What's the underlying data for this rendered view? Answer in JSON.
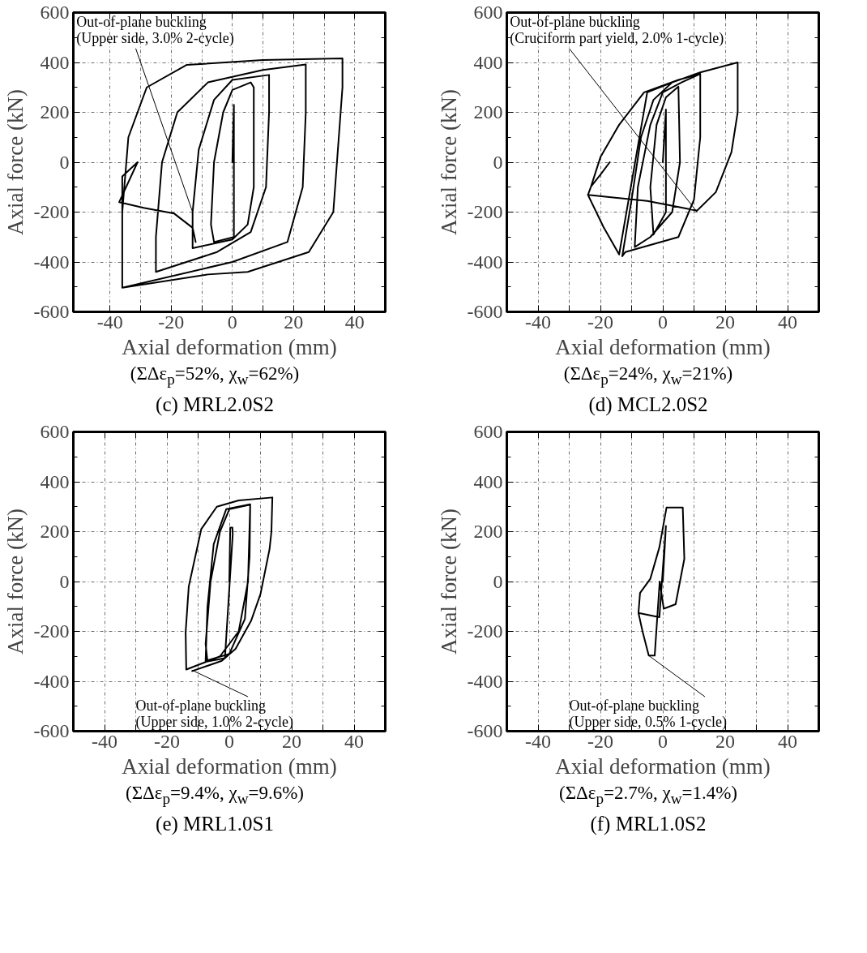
{
  "chart_data": [
    {
      "type": "line",
      "title": "(c) MRL2.0S2",
      "subtitle": "(ΣΔε$_{p}$=52%, χ$_{w}$=62%)",
      "xlabel": "Axial deformation (mm)",
      "ylabel": "Axial force (kN)",
      "xlim": [
        -52,
        50
      ],
      "ylim": [
        -600,
        600
      ],
      "xticks": [
        -40,
        {
          "value": -30,
          "label": null
        },
        -20,
        {
          "value": -10,
          "label": null
        },
        0,
        {
          "value": 10,
          "label": null
        },
        20,
        {
          "value": 30,
          "label": null
        },
        40
      ],
      "yticks": [
        -600,
        -400,
        -200,
        0,
        200,
        400,
        600
      ],
      "grid": true,
      "series": [
        {
          "color": "#000000",
          "x": [
            0,
            0.5,
            0.5,
            -6,
            -7,
            -6,
            -3,
            0,
            6,
            7,
            7,
            5,
            0,
            -13,
            -13,
            -11,
            -6,
            0,
            12,
            12,
            11,
            6,
            -5,
            -25,
            -25,
            -23,
            -18,
            -8,
            10,
            24,
            24,
            23,
            18,
            0,
            -36,
            -36,
            -34,
            -28,
            -15,
            10,
            36,
            36,
            33,
            25,
            5,
            -8,
            -36,
            -36,
            -36,
            -31,
            -37,
            -29,
            -19,
            -13,
            -12
          ],
          "values": [
            0,
            230,
            -300,
            -320,
            -250,
            0,
            200,
            290,
            320,
            300,
            -100,
            -250,
            -310,
            -345,
            -200,
            50,
            250,
            330,
            350,
            200,
            -100,
            -280,
            -360,
            -440,
            -300,
            0,
            200,
            320,
            370,
            392,
            200,
            -100,
            -320,
            -400,
            -503,
            -200,
            100,
            300,
            390,
            410,
            416,
            300,
            -200,
            -360,
            -440,
            -450,
            -503,
            -160,
            -57,
            0,
            -160,
            -183,
            -206,
            -263,
            -320
          ]
        }
      ],
      "annotations": [
        {
          "text": "Out-of-plane buckling\n(Upper side, 3.0% 2-cycle)",
          "x": -13,
          "y": -200
        }
      ]
    },
    {
      "type": "line",
      "title": "(d) MCL2.0S2",
      "subtitle": "(ΣΔε$_{p}$=24%, χ$_{w}$=21%)",
      "xlabel": "Axial deformation (mm)",
      "ylabel": "Axial force (kN)",
      "xlim": [
        -50,
        50
      ],
      "ylim": [
        -600,
        600
      ],
      "xticks": [
        -40,
        {
          "value": -30,
          "label": null
        },
        -20,
        {
          "value": -10,
          "label": null
        },
        0,
        {
          "value": 10,
          "label": null
        },
        20,
        {
          "value": 30,
          "label": null
        },
        40
      ],
      "yticks": [
        -600,
        -400,
        -200,
        0,
        200,
        400,
        600
      ],
      "grid": true,
      "series": [
        {
          "color": "#000000",
          "x": [
            0,
            1,
            1,
            -3,
            -4,
            -2,
            1,
            5,
            5.5,
            3,
            -4,
            -9,
            -8,
            -4,
            0,
            6,
            12,
            12,
            10,
            5,
            -12,
            -13,
            -10,
            -7,
            -3,
            3,
            12,
            24,
            24,
            22,
            17,
            11,
            -5,
            -24,
            -23,
            -20,
            -17,
            -20,
            -23,
            -20,
            -14,
            -6,
            5,
            12,
            5,
            -5,
            -14,
            -19,
            -24
          ],
          "values": [
            0,
            211,
            -200,
            -290,
            -100,
            150,
            260,
            303,
            0,
            -200,
            -300,
            -340,
            -100,
            150,
            280,
            320,
            354,
            100,
            -150,
            -300,
            -360,
            -377,
            -150,
            100,
            250,
            320,
            360,
            400,
            200,
            40,
            -120,
            -194,
            -155,
            -131,
            -97,
            -50,
            0,
            -50,
            -97,
            20,
            150,
            280,
            330,
            354,
            330,
            280,
            -370,
            -260,
            -131
          ]
        }
      ],
      "annotations": [
        {
          "text": "Out-of-plane buckling\n(Cruciform part yield, 2.0% 1-cycle)",
          "x": 11,
          "y": -200
        }
      ]
    },
    {
      "type": "line",
      "title": "(e) MRL1.0S1",
      "subtitle": "(ΣΔε$_{p}$=9.4%, χ$_{w}$=9.6%)",
      "xlabel": "Axial deformation (mm)",
      "ylabel": "Axial force (kN)",
      "xlim": [
        -50,
        50
      ],
      "ylim": [
        -600,
        600
      ],
      "xticks": [
        -40,
        {
          "value": -30,
          "label": null
        },
        -20,
        {
          "value": -10,
          "label": null
        },
        0,
        {
          "value": 10,
          "label": null
        },
        20,
        {
          "value": 30,
          "label": null
        },
        40
      ],
      "yticks": [
        -600,
        -400,
        -200,
        0,
        200,
        400,
        600
      ],
      "grid": true,
      "series": [
        {
          "color": "#000000",
          "x": [
            0,
            0.3,
            1,
            1.1,
            -1.4,
            -7,
            -7.6,
            -6,
            -3,
            0,
            6.7,
            6.5,
            5,
            0,
            -7.6,
            -7,
            -5,
            -1,
            6.7,
            6,
            3,
            -3,
            -13.8,
            -14,
            -13,
            -9,
            -4,
            3,
            13.8,
            13.5,
            12.9,
            10,
            7,
            2,
            -2.4,
            -11.9
          ],
          "values": [
            0,
            216,
            216,
            190,
            -307,
            -320,
            -250,
            0,
            200,
            290,
            308,
            100,
            -150,
            -290,
            -318,
            -100,
            150,
            290,
            310,
            0,
            -200,
            -300,
            -353,
            -203,
            -20,
            210,
            300,
            325,
            337,
            200,
            130,
            -50,
            -157,
            -270,
            -318,
            -359
          ]
        }
      ],
      "annotations": [
        {
          "text": "Out-of-plane buckling\n(Upper side, 1.0% 2-cycle)",
          "x": -12,
          "y": -355
        }
      ]
    },
    {
      "type": "line",
      "title": "(f) MRL1.0S2",
      "subtitle": "(ΣΔε$_{p}$=2.7%, χ$_{w}$=1.4%)",
      "xlabel": "Axial deformation (mm)",
      "ylabel": "Axial force (kN)",
      "xlim": [
        -50,
        50
      ],
      "ylim": [
        -600,
        600
      ],
      "xticks": [
        -40,
        {
          "value": -30,
          "label": null
        },
        -20,
        {
          "value": -10,
          "label": null
        },
        0,
        {
          "value": 10,
          "label": null
        },
        20,
        {
          "value": 30,
          "label": null
        },
        40
      ],
      "yticks": [
        -600,
        -400,
        -200,
        0,
        200,
        400,
        600
      ],
      "grid": true,
      "series": [
        {
          "color": "#000000",
          "x": [
            0,
            1,
            -1.1,
            -7.8,
            -6.5,
            -4.5,
            -2.6,
            -1,
            0.3,
            4.1,
            6.9,
            6.4,
            1.2,
            -1.1,
            -4,
            -7.3,
            -7.8
          ],
          "values": [
            0,
            223,
            -143,
            -126,
            -200,
            -297,
            -297,
            0,
            -109,
            -91,
            91,
            297,
            297,
            137,
            11,
            -46,
            -126
          ]
        }
      ],
      "annotations": [
        {
          "text": "Out-of-plane buckling\n(Upper side, 0.5% 1-cycle)",
          "x": -4.5,
          "y": -297
        }
      ]
    }
  ]
}
